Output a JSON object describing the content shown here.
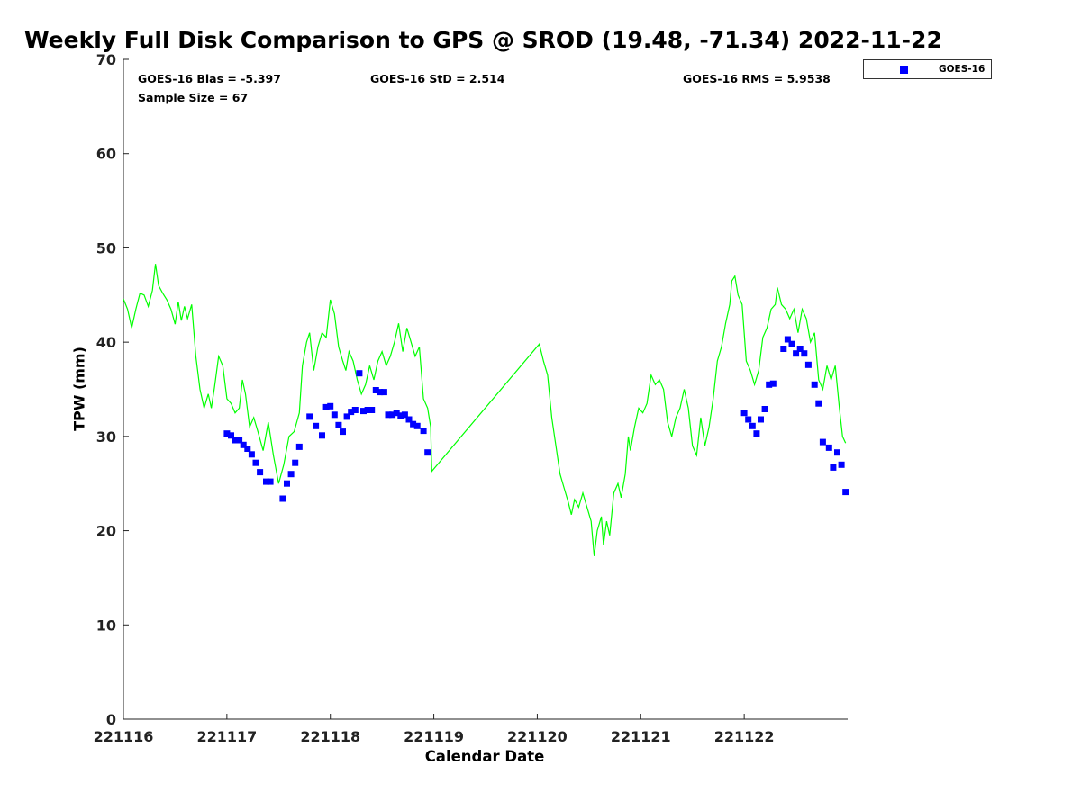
{
  "chart_data": {
    "type": "scatter",
    "title": "Weekly Full Disk Comparison to GPS @ SROD (19.48, -71.34) 2022-11-22",
    "xlabel": "Calendar Date",
    "ylabel": "TPW (mm)",
    "xlim": [
      0,
      7
    ],
    "ylim": [
      0,
      70
    ],
    "x_tick_values": [
      0,
      1,
      2,
      3,
      4,
      5,
      6
    ],
    "x_tick_labels": [
      "221116",
      "221117",
      "221118",
      "221119",
      "221120",
      "221121",
      "221122"
    ],
    "y_tick_values": [
      0,
      10,
      20,
      30,
      40,
      50,
      60,
      70
    ],
    "y_tick_labels": [
      "0",
      "10",
      "20",
      "30",
      "40",
      "50",
      "60",
      "70"
    ],
    "stats": {
      "bias": "GOES-16 Bias = -5.397",
      "std": "GOES-16 StD = 2.514",
      "rms": "GOES-16 RMS = 5.9538",
      "sample": "Sample Size = 67"
    },
    "legend": {
      "label": "GOES-16",
      "position": "top-right-outside"
    },
    "series": [
      {
        "name": "GPS",
        "kind": "line",
        "color": "#00ff00",
        "points": [
          [
            0.0,
            44.6
          ],
          [
            0.04,
            43.5
          ],
          [
            0.08,
            41.5
          ],
          [
            0.12,
            43.5
          ],
          [
            0.16,
            45.2
          ],
          [
            0.2,
            45.0
          ],
          [
            0.24,
            43.8
          ],
          [
            0.28,
            45.5
          ],
          [
            0.31,
            48.3
          ],
          [
            0.34,
            46.0
          ],
          [
            0.38,
            45.2
          ],
          [
            0.42,
            44.5
          ],
          [
            0.46,
            43.5
          ],
          [
            0.5,
            41.9
          ],
          [
            0.53,
            44.3
          ],
          [
            0.56,
            42.3
          ],
          [
            0.59,
            43.8
          ],
          [
            0.62,
            42.5
          ],
          [
            0.66,
            44.0
          ],
          [
            0.7,
            38.5
          ],
          [
            0.74,
            35.0
          ],
          [
            0.78,
            33.0
          ],
          [
            0.82,
            34.5
          ],
          [
            0.85,
            33.0
          ],
          [
            0.88,
            35.2
          ],
          [
            0.92,
            38.5
          ],
          [
            0.96,
            37.5
          ],
          [
            1.0,
            34.0
          ],
          [
            1.04,
            33.5
          ],
          [
            1.08,
            32.5
          ],
          [
            1.12,
            33.0
          ],
          [
            1.15,
            36.0
          ],
          [
            1.18,
            34.5
          ],
          [
            1.22,
            31.0
          ],
          [
            1.26,
            32.0
          ],
          [
            1.3,
            30.5
          ],
          [
            1.35,
            28.5
          ],
          [
            1.4,
            31.5
          ],
          [
            1.45,
            28.0
          ],
          [
            1.5,
            25.0
          ],
          [
            1.55,
            27.0
          ],
          [
            1.6,
            30.0
          ],
          [
            1.65,
            30.5
          ],
          [
            1.7,
            32.5
          ],
          [
            1.73,
            37.5
          ],
          [
            1.77,
            40.0
          ],
          [
            1.8,
            41.0
          ],
          [
            1.84,
            37.0
          ],
          [
            1.88,
            39.5
          ],
          [
            1.92,
            41.0
          ],
          [
            1.96,
            40.5
          ],
          [
            2.0,
            44.5
          ],
          [
            2.04,
            43.0
          ],
          [
            2.08,
            39.5
          ],
          [
            2.12,
            38.0
          ],
          [
            2.15,
            37.0
          ],
          [
            2.18,
            39.0
          ],
          [
            2.22,
            38.0
          ],
          [
            2.26,
            36.0
          ],
          [
            2.3,
            34.5
          ],
          [
            2.34,
            35.5
          ],
          [
            2.38,
            37.5
          ],
          [
            2.42,
            36.0
          ],
          [
            2.46,
            38.0
          ],
          [
            2.5,
            39.0
          ],
          [
            2.54,
            37.5
          ],
          [
            2.58,
            38.5
          ],
          [
            2.62,
            40.0
          ],
          [
            2.66,
            42.0
          ],
          [
            2.7,
            39.0
          ],
          [
            2.74,
            41.5
          ],
          [
            2.78,
            40.0
          ],
          [
            2.82,
            38.5
          ],
          [
            2.86,
            39.5
          ],
          [
            2.9,
            34.0
          ],
          [
            2.94,
            33.0
          ],
          [
            2.97,
            31.0
          ],
          [
            2.98,
            26.3
          ],
          [
            4.02,
            39.8
          ],
          [
            4.06,
            38.0
          ],
          [
            4.1,
            36.5
          ],
          [
            4.14,
            32.0
          ],
          [
            4.18,
            29.0
          ],
          [
            4.22,
            26.0
          ],
          [
            4.26,
            24.5
          ],
          [
            4.3,
            23.0
          ],
          [
            4.33,
            21.7
          ],
          [
            4.36,
            23.3
          ],
          [
            4.4,
            22.5
          ],
          [
            4.44,
            24.0
          ],
          [
            4.48,
            22.5
          ],
          [
            4.52,
            21.0
          ],
          [
            4.55,
            17.3
          ],
          [
            4.58,
            20.0
          ],
          [
            4.62,
            21.5
          ],
          [
            4.64,
            18.5
          ],
          [
            4.67,
            21.0
          ],
          [
            4.7,
            19.5
          ],
          [
            4.74,
            24.0
          ],
          [
            4.78,
            25.0
          ],
          [
            4.81,
            23.5
          ],
          [
            4.85,
            26.0
          ],
          [
            4.88,
            30.0
          ],
          [
            4.9,
            28.5
          ],
          [
            4.94,
            31.0
          ],
          [
            4.98,
            33.0
          ],
          [
            5.02,
            32.5
          ],
          [
            5.06,
            33.5
          ],
          [
            5.1,
            36.5
          ],
          [
            5.14,
            35.5
          ],
          [
            5.18,
            36.0
          ],
          [
            5.22,
            35.0
          ],
          [
            5.26,
            31.5
          ],
          [
            5.3,
            30.0
          ],
          [
            5.34,
            32.0
          ],
          [
            5.38,
            33.0
          ],
          [
            5.42,
            35.0
          ],
          [
            5.46,
            33.0
          ],
          [
            5.5,
            29.0
          ],
          [
            5.54,
            28.0
          ],
          [
            5.58,
            32.0
          ],
          [
            5.62,
            29.0
          ],
          [
            5.66,
            31.0
          ],
          [
            5.7,
            34.0
          ],
          [
            5.74,
            38.0
          ],
          [
            5.78,
            39.5
          ],
          [
            5.82,
            42.0
          ],
          [
            5.86,
            44.0
          ],
          [
            5.88,
            46.5
          ],
          [
            5.91,
            47.0
          ],
          [
            5.94,
            45.0
          ],
          [
            5.98,
            44.0
          ],
          [
            6.02,
            38.0
          ],
          [
            6.06,
            37.0
          ],
          [
            6.1,
            35.5
          ],
          [
            6.14,
            37.0
          ],
          [
            6.18,
            40.5
          ],
          [
            6.22,
            41.5
          ],
          [
            6.26,
            43.5
          ],
          [
            6.3,
            44.0
          ],
          [
            6.32,
            45.8
          ],
          [
            6.36,
            44.0
          ],
          [
            6.4,
            43.5
          ],
          [
            6.44,
            42.5
          ],
          [
            6.48,
            43.5
          ],
          [
            6.52,
            41.0
          ],
          [
            6.56,
            43.5
          ],
          [
            6.6,
            42.5
          ],
          [
            6.64,
            40.0
          ],
          [
            6.68,
            41.0
          ],
          [
            6.72,
            36.0
          ],
          [
            6.76,
            35.0
          ],
          [
            6.8,
            37.5
          ],
          [
            6.84,
            36.0
          ],
          [
            6.88,
            37.5
          ],
          [
            6.92,
            33.0
          ],
          [
            6.95,
            30.0
          ],
          [
            6.98,
            29.3
          ]
        ]
      },
      {
        "name": "GOES-16",
        "kind": "scatter",
        "color": "#0000ff",
        "points": [
          [
            1.0,
            30.3
          ],
          [
            1.04,
            30.1
          ],
          [
            1.08,
            29.6
          ],
          [
            1.12,
            29.6
          ],
          [
            1.16,
            29.1
          ],
          [
            1.2,
            28.7
          ],
          [
            1.24,
            28.1
          ],
          [
            1.28,
            27.2
          ],
          [
            1.32,
            26.2
          ],
          [
            1.38,
            25.2
          ],
          [
            1.42,
            25.2
          ],
          [
            1.54,
            23.4
          ],
          [
            1.58,
            25.0
          ],
          [
            1.62,
            26.0
          ],
          [
            1.66,
            27.2
          ],
          [
            1.7,
            28.9
          ],
          [
            1.8,
            32.1
          ],
          [
            1.86,
            31.1
          ],
          [
            1.92,
            30.1
          ],
          [
            1.96,
            33.1
          ],
          [
            2.0,
            33.2
          ],
          [
            2.04,
            32.3
          ],
          [
            2.08,
            31.2
          ],
          [
            2.12,
            30.5
          ],
          [
            2.16,
            32.1
          ],
          [
            2.2,
            32.6
          ],
          [
            2.24,
            32.8
          ],
          [
            2.28,
            36.7
          ],
          [
            2.32,
            32.7
          ],
          [
            2.36,
            32.8
          ],
          [
            2.4,
            32.8
          ],
          [
            2.44,
            34.9
          ],
          [
            2.48,
            34.7
          ],
          [
            2.52,
            34.7
          ],
          [
            2.56,
            32.3
          ],
          [
            2.6,
            32.3
          ],
          [
            2.64,
            32.5
          ],
          [
            2.68,
            32.2
          ],
          [
            2.72,
            32.3
          ],
          [
            2.76,
            31.8
          ],
          [
            2.8,
            31.3
          ],
          [
            2.84,
            31.1
          ],
          [
            2.9,
            30.6
          ],
          [
            2.94,
            28.3
          ],
          [
            6.0,
            32.5
          ],
          [
            6.04,
            31.8
          ],
          [
            6.08,
            31.1
          ],
          [
            6.12,
            30.3
          ],
          [
            6.16,
            31.8
          ],
          [
            6.2,
            32.9
          ],
          [
            6.24,
            35.5
          ],
          [
            6.28,
            35.6
          ],
          [
            6.38,
            39.3
          ],
          [
            6.42,
            40.3
          ],
          [
            6.46,
            39.8
          ],
          [
            6.5,
            38.8
          ],
          [
            6.54,
            39.3
          ],
          [
            6.58,
            38.8
          ],
          [
            6.62,
            37.6
          ],
          [
            6.68,
            35.5
          ],
          [
            6.72,
            33.5
          ],
          [
            6.76,
            29.4
          ],
          [
            6.82,
            28.8
          ],
          [
            6.86,
            26.7
          ],
          [
            6.9,
            28.3
          ],
          [
            6.94,
            27.0
          ],
          [
            6.98,
            24.1
          ]
        ]
      }
    ]
  }
}
